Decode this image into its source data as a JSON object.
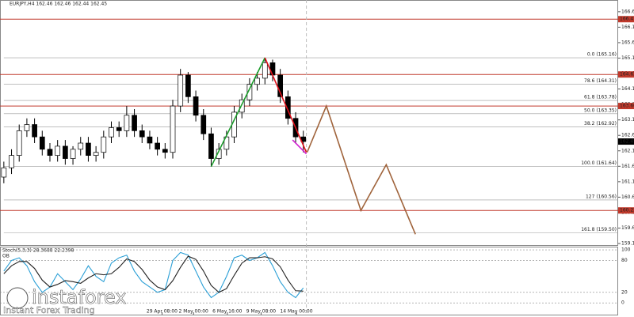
{
  "chart_data": {
    "type": "candlestick",
    "title": "EURJPY,H4  162.46 162.46 162.44 162.45",
    "open": [
      161.3,
      161.6,
      162.0,
      162.8,
      163.0,
      162.6,
      162.2,
      162.0,
      162.3,
      161.9,
      162.2,
      162.4,
      162.0,
      162.1,
      162.6,
      162.9,
      162.8,
      163.3,
      162.8,
      162.6,
      162.4,
      162.2,
      162.1,
      163.6,
      164.6,
      163.9,
      163.3,
      162.7,
      161.9,
      162.2,
      162.6,
      163.4,
      163.8,
      164.3,
      164.5,
      165.0,
      164.6,
      163.9,
      163.2,
      162.6
    ],
    "high": [
      161.8,
      162.2,
      163.0,
      163.2,
      163.2,
      162.8,
      162.4,
      162.5,
      162.5,
      162.3,
      162.6,
      162.6,
      162.3,
      162.8,
      163.1,
      163.1,
      163.6,
      163.5,
      163.0,
      162.8,
      162.6,
      162.4,
      163.8,
      164.8,
      164.7,
      164.1,
      163.5,
      162.9,
      162.4,
      162.8,
      163.6,
      164.0,
      164.5,
      164.7,
      165.16,
      165.1,
      164.8,
      164.1,
      163.4,
      162.8
    ],
    "low": [
      161.1,
      161.4,
      161.8,
      162.6,
      162.4,
      162.0,
      161.8,
      161.8,
      161.7,
      161.7,
      162.0,
      161.8,
      161.8,
      161.9,
      162.4,
      162.6,
      162.6,
      162.6,
      162.4,
      162.2,
      162.0,
      161.9,
      161.9,
      163.4,
      163.7,
      163.1,
      162.5,
      161.64,
      161.7,
      162.0,
      162.4,
      163.2,
      163.6,
      164.1,
      164.3,
      164.4,
      163.7,
      163.0,
      162.4,
      162.1
    ],
    "close": [
      161.6,
      162.0,
      162.8,
      163.0,
      162.6,
      162.2,
      162.0,
      162.3,
      161.9,
      162.2,
      162.4,
      162.0,
      162.1,
      162.6,
      162.9,
      162.8,
      163.3,
      162.8,
      162.6,
      162.4,
      162.2,
      162.1,
      163.6,
      164.6,
      163.9,
      163.3,
      162.7,
      161.9,
      162.2,
      162.6,
      163.4,
      163.8,
      164.3,
      164.5,
      165.0,
      164.6,
      163.9,
      163.2,
      162.6,
      162.45
    ],
    "xlim": [
      -0.5,
      80
    ],
    "xticks": [
      {
        "value": 20.6,
        "label": "29 Apr 08:00"
      },
      {
        "value": 24.7,
        "label": "2 May 00:00"
      },
      {
        "value": 29.1,
        "label": "6 May 16:00"
      },
      {
        "value": 33.5,
        "label": "9 May 08:00"
      },
      {
        "value": 38.1,
        "label": "14 May 00:00"
      }
    ],
    "ylim": [
      159.1,
      167.03
    ],
    "yticks": [
      166.65,
      166.15,
      165.65,
      165.15,
      164.65,
      164.15,
      163.65,
      163.15,
      162.65,
      162.15,
      161.65,
      161.15,
      160.65,
      160.15,
      159.65,
      159.15
    ],
    "current_price": 162.45,
    "levels": [
      {
        "value": 166.41,
        "label": "166.41"
      },
      {
        "value": 164.62,
        "label": "164.62"
      },
      {
        "value": 163.6,
        "label": "163.60"
      },
      {
        "value": 160.22,
        "label": "160.22"
      }
    ],
    "level_color": "#c0392b",
    "fib_levels": [
      {
        "value": 165.16,
        "label": "0.0 (165.16)"
      },
      {
        "value": 164.31,
        "label": "78.6 (164.31)"
      },
      {
        "value": 163.78,
        "label": "61.8 (163.78)"
      },
      {
        "value": 163.35,
        "label": "50.0 (163.35)"
      },
      {
        "value": 162.92,
        "label": "38.2 (162.92)"
      },
      {
        "value": 161.64,
        "label": "100.0 (161.64)"
      },
      {
        "value": 160.56,
        "label": "127 (160.56)"
      },
      {
        "value": 159.5,
        "label": "161.8 (159.50)"
      }
    ],
    "trend_lines": [
      {
        "color": "#1a9c2a",
        "x": [
          27,
          34
        ],
        "y": [
          161.64,
          165.16
        ]
      },
      {
        "color": "#e0101a",
        "x": [
          34,
          39.4
        ],
        "y": [
          165.16,
          162.1
        ]
      },
      {
        "color": "#d020d0",
        "x": [
          37.6,
          39.4
        ],
        "y": [
          162.5,
          162.05
        ]
      }
    ],
    "projection": {
      "color": "#a0643c",
      "x": [
        39.5,
        42,
        46.5,
        49.8,
        53.6
      ],
      "y": [
        162.1,
        163.6,
        160.22,
        161.7,
        159.45
      ]
    },
    "stoch": {
      "title": "Stoch(5,3,3) 28.3688 22.2398",
      "zone_label": "OB",
      "ylim": [
        -22,
        106
      ],
      "yticks": [
        100,
        80,
        20,
        0
      ],
      "series": [
        {
          "color": "#2a9fd6",
          "values": [
            60,
            80,
            85,
            70,
            40,
            20,
            30,
            55,
            40,
            25,
            45,
            70,
            50,
            40,
            75,
            85,
            90,
            60,
            40,
            30,
            20,
            25,
            80,
            95,
            90,
            60,
            30,
            10,
            20,
            50,
            85,
            90,
            80,
            85,
            95,
            70,
            40,
            20,
            10,
            28.37
          ]
        },
        {
          "color": "#222222",
          "values": [
            55,
            70,
            78,
            78,
            65,
            43,
            30,
            35,
            42,
            40,
            37,
            47,
            55,
            53,
            55,
            67,
            83,
            78,
            63,
            43,
            30,
            25,
            42,
            67,
            88,
            82,
            60,
            33,
            20,
            27,
            52,
            75,
            85,
            85,
            87,
            83,
            68,
            43,
            23,
            22.24
          ]
        }
      ]
    }
  },
  "watermark": {
    "brand": "instaforex",
    "tagline": "Instant Forex Trading"
  }
}
